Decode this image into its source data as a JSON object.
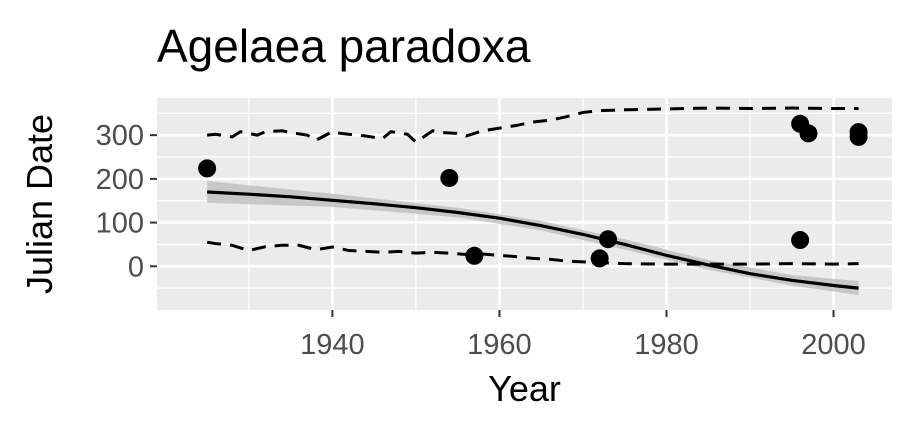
{
  "chart_data": {
    "type": "scatter",
    "title": "Agelaea paradoxa",
    "xlabel": "Year",
    "ylabel": "Julian Date",
    "xlim": [
      1919,
      2007
    ],
    "ylim": [
      -100,
      385
    ],
    "x_ticks": [
      1940,
      1960,
      1980,
      2000
    ],
    "y_ticks": [
      0,
      100,
      200,
      300
    ],
    "grid": true,
    "colors": {
      "panel_background": "#ebebeb",
      "grid": "#ffffff",
      "points": "#000000",
      "ribbon": "#bebebe",
      "lines": "#000000",
      "tick_text": "#4d4d4d"
    },
    "points": [
      {
        "x": 1925,
        "y": 224
      },
      {
        "x": 1954,
        "y": 202
      },
      {
        "x": 1957,
        "y": 24
      },
      {
        "x": 1972,
        "y": 18
      },
      {
        "x": 1973,
        "y": 62
      },
      {
        "x": 1996,
        "y": 326
      },
      {
        "x": 1996,
        "y": 60
      },
      {
        "x": 1997,
        "y": 304
      },
      {
        "x": 2003,
        "y": 307
      },
      {
        "x": 2003,
        "y": 296
      }
    ],
    "fit_line": {
      "x": [
        1925,
        1930,
        1935,
        1940,
        1945,
        1950,
        1955,
        1960,
        1965,
        1970,
        1975,
        1980,
        1985,
        1990,
        1995,
        2000,
        2003
      ],
      "y": [
        170,
        165,
        159,
        151,
        143,
        134,
        123,
        110,
        93,
        73,
        50,
        25,
        3,
        -17,
        -32,
        -44,
        -50
      ]
    },
    "ribbon": {
      "x": [
        1925,
        1940,
        1955,
        1965,
        1975,
        1985,
        1995,
        2003
      ],
      "lower": [
        145,
        136,
        112,
        82,
        38,
        -8,
        -44,
        -66
      ],
      "upper": [
        195,
        166,
        134,
        104,
        62,
        14,
        -20,
        -34
      ]
    },
    "upper_quantile": {
      "x": [
        1925,
        1926,
        1928,
        1929,
        1931,
        1932,
        1934,
        1935,
        1937,
        1938,
        1940,
        1941,
        1943,
        1944,
        1946,
        1947,
        1949,
        1950,
        1952,
        1953,
        1955,
        1956,
        1958,
        1960,
        1962,
        1964,
        1966,
        1968,
        1970,
        1972,
        1975,
        1980,
        1985,
        1990,
        1995,
        2000,
        2003
      ],
      "y": [
        300,
        302,
        296,
        308,
        300,
        308,
        310,
        306,
        300,
        288,
        308,
        304,
        300,
        298,
        292,
        308,
        302,
        284,
        310,
        306,
        304,
        298,
        310,
        316,
        322,
        330,
        334,
        342,
        352,
        356,
        358,
        360,
        362,
        361,
        362,
        361,
        361
      ]
    },
    "lower_quantile": {
      "x": [
        1925,
        1926,
        1928,
        1930,
        1932,
        1934,
        1936,
        1938,
        1940,
        1942,
        1944,
        1946,
        1948,
        1950,
        1952,
        1954,
        1956,
        1958,
        1960,
        1962,
        1964,
        1966,
        1968,
        1970,
        1975,
        1980,
        1985,
        1990,
        1995,
        2000,
        2003
      ],
      "y": [
        55,
        52,
        48,
        36,
        45,
        48,
        48,
        38,
        44,
        36,
        34,
        32,
        34,
        30,
        32,
        30,
        27,
        28,
        25,
        22,
        18,
        16,
        12,
        10,
        6,
        5,
        5,
        5,
        6,
        5,
        6
      ]
    }
  }
}
